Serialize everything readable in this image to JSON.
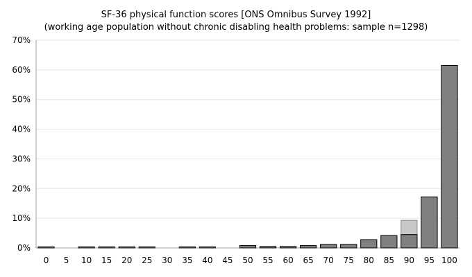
{
  "chart_data": {
    "type": "bar",
    "title": "SF-36 physical function scores [ONS Omnibus Survey 1992]",
    "subtitle": "(working age population without chronic disabling health problems: sample n=1298)",
    "xlabel": "",
    "ylabel": "",
    "categories": [
      "0",
      "5",
      "10",
      "15",
      "20",
      "25",
      "30",
      "35",
      "40",
      "45",
      "50",
      "55",
      "60",
      "65",
      "70",
      "75",
      "80",
      "85",
      "90",
      "95",
      "100"
    ],
    "values": [
      0.2,
      0,
      0.2,
      0.2,
      0.2,
      0.2,
      0,
      0.2,
      0.2,
      0,
      0.8,
      0.5,
      0.5,
      0.8,
      1.2,
      1.2,
      2.8,
      4.2,
      4.5,
      17.2,
      61.5
    ],
    "overlay_values": [
      0,
      0,
      0,
      0,
      0,
      0,
      0,
      0,
      0,
      0,
      0,
      0,
      0,
      0,
      0,
      0,
      0,
      0,
      4.8,
      0,
      0
    ],
    "ylim": [
      0,
      70
    ],
    "yticks": [
      "0%",
      "10%",
      "20%",
      "30%",
      "40%",
      "50%",
      "60%",
      "70%"
    ],
    "grid": true,
    "colors": {
      "bar": "#808080",
      "overlay": "#c8c8c8",
      "bar_edge": "#000000",
      "grid": "#e6e6e6",
      "axis": "#a0a0a0"
    }
  }
}
